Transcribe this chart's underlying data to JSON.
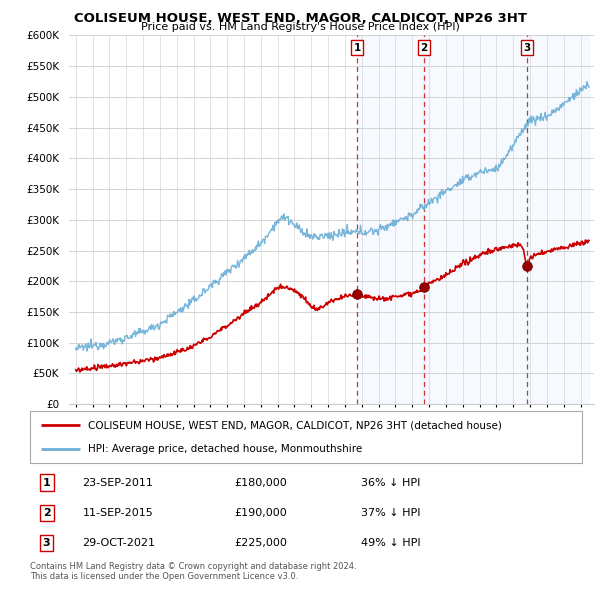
{
  "title": "COLISEUM HOUSE, WEST END, MAGOR, CALDICOT, NP26 3HT",
  "subtitle": "Price paid vs. HM Land Registry's House Price Index (HPI)",
  "ylim": [
    0,
    600000
  ],
  "yticks": [
    0,
    50000,
    100000,
    150000,
    200000,
    250000,
    300000,
    350000,
    400000,
    450000,
    500000,
    550000,
    600000
  ],
  "ytick_labels": [
    "£0",
    "£50K",
    "£100K",
    "£150K",
    "£200K",
    "£250K",
    "£300K",
    "£350K",
    "£400K",
    "£450K",
    "£500K",
    "£550K",
    "£600K"
  ],
  "hpi_color": "#6baed6",
  "price_color": "#cc0000",
  "sale_marker_color": "#990000",
  "vline_color": "#cc3333",
  "shade_color": "#ddeeff",
  "sales": [
    {
      "date_num": 2011.73,
      "price": 180000,
      "label": "1"
    },
    {
      "date_num": 2015.7,
      "price": 190000,
      "label": "2"
    },
    {
      "date_num": 2021.83,
      "price": 225000,
      "label": "3"
    }
  ],
  "legend_entries": [
    {
      "label": "COLISEUM HOUSE, WEST END, MAGOR, CALDICOT, NP26 3HT (detached house)",
      "color": "#cc0000"
    },
    {
      "label": "HPI: Average price, detached house, Monmouthshire",
      "color": "#6baed6"
    }
  ],
  "table_data": [
    {
      "num": "1",
      "date": "23-SEP-2011",
      "price": "£180,000",
      "hpi": "36% ↓ HPI"
    },
    {
      "num": "2",
      "date": "11-SEP-2015",
      "price": "£190,000",
      "hpi": "37% ↓ HPI"
    },
    {
      "num": "3",
      "date": "29-OCT-2021",
      "price": "£225,000",
      "hpi": "49% ↓ HPI"
    }
  ],
  "footnote": "Contains HM Land Registry data © Crown copyright and database right 2024.\nThis data is licensed under the Open Government Licence v3.0.",
  "background_color": "#ffffff",
  "grid_color": "#cccccc",
  "xstart": 1995,
  "xend": 2025
}
